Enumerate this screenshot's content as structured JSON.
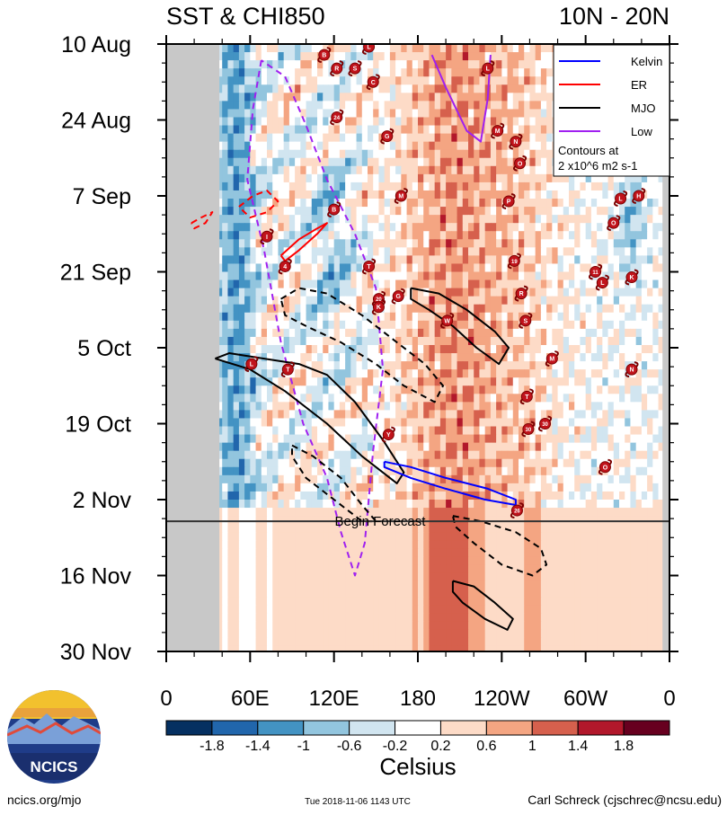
{
  "chart_data": {
    "type": "heatmap",
    "title_left": "SST & CHI850",
    "title_right": "10N - 20N",
    "x_ticks": [
      "0",
      "60E",
      "120E",
      "180",
      "120W",
      "60W",
      "0"
    ],
    "x_tick_lon": [
      0,
      60,
      120,
      180,
      240,
      300,
      360
    ],
    "y_ticks": [
      "10 Aug",
      "24 Aug",
      "7 Sep",
      "21 Sep",
      "5 Oct",
      "19 Oct",
      "2 Nov",
      "16 Nov",
      "30 Nov"
    ],
    "y_range_days": [
      0,
      112
    ],
    "forecast_day": 86,
    "forecast_label": "Begin Forecast",
    "land_lon_ranges": [
      [
        0,
        38
      ],
      [
        355,
        360
      ]
    ],
    "legend": {
      "entries": [
        {
          "name": "Kelvin",
          "color": "#0000ff"
        },
        {
          "name": "ER",
          "color": "#ff0000"
        },
        {
          "name": "MJO",
          "color": "#000000"
        },
        {
          "name": "Low",
          "color": "#a020f0"
        }
      ],
      "note_line1": "Contours at",
      "note_line2": "2 x10^6 m2 s-1"
    },
    "colorbar": {
      "title": "Celsius",
      "labels": [
        "-1.8",
        "-1.4",
        "-1",
        "-0.6",
        "-0.2",
        "0.2",
        "0.6",
        "1",
        "1.4",
        "1.8"
      ],
      "colors": [
        "#053061",
        "#2166ac",
        "#4393c3",
        "#92c5de",
        "#d1e5f0",
        "#ffffff",
        "#fddbc7",
        "#f4a582",
        "#d6604d",
        "#b2182b",
        "#67001f"
      ]
    },
    "contours": [
      {
        "wave": "Low",
        "style": "dashed",
        "points": [
          [
            68,
            3
          ],
          [
            62,
            12
          ],
          [
            58,
            25
          ],
          [
            70,
            38
          ],
          [
            82,
            55
          ],
          [
            98,
            70
          ],
          [
            115,
            80
          ],
          [
            125,
            90
          ],
          [
            135,
            98
          ],
          [
            142,
            92
          ],
          [
            148,
            75
          ],
          [
            155,
            60
          ],
          [
            150,
            45
          ],
          [
            135,
            35
          ],
          [
            115,
            25
          ],
          [
            100,
            15
          ],
          [
            85,
            6
          ],
          [
            68,
            3
          ]
        ]
      },
      {
        "wave": "Low",
        "style": "solid",
        "points": [
          [
            190,
            2
          ],
          [
            200,
            8
          ],
          [
            215,
            16
          ],
          [
            225,
            18
          ],
          [
            230,
            10
          ],
          [
            232,
            2
          ]
        ]
      },
      {
        "wave": "ER",
        "style": "dashed",
        "points": [
          [
            52,
            30
          ],
          [
            62,
            28
          ],
          [
            72,
            27
          ],
          [
            80,
            29
          ],
          [
            72,
            31
          ],
          [
            60,
            32
          ],
          [
            52,
            30
          ]
        ]
      },
      {
        "wave": "ER",
        "style": "dashed",
        "points": [
          [
            18,
            33
          ],
          [
            25,
            32
          ],
          [
            33,
            31
          ],
          [
            28,
            33
          ],
          [
            20,
            34
          ],
          [
            18,
            33
          ]
        ]
      },
      {
        "wave": "ER",
        "style": "solid",
        "points": [
          [
            82,
            39
          ],
          [
            95,
            36
          ],
          [
            108,
            34
          ],
          [
            115,
            33
          ],
          [
            108,
            35
          ],
          [
            95,
            38
          ],
          [
            85,
            40
          ],
          [
            82,
            39
          ]
        ]
      },
      {
        "wave": "MJO",
        "style": "solid",
        "points": [
          [
            35,
            58
          ],
          [
            60,
            60
          ],
          [
            85,
            64
          ],
          [
            115,
            70
          ],
          [
            140,
            76
          ],
          [
            165,
            81
          ],
          [
            170,
            79
          ],
          [
            155,
            73
          ],
          [
            135,
            66
          ],
          [
            115,
            61
          ],
          [
            95,
            59
          ],
          [
            70,
            58
          ],
          [
            45,
            57
          ],
          [
            35,
            58
          ]
        ]
      },
      {
        "wave": "MJO",
        "style": "solid",
        "points": [
          [
            175,
            45
          ],
          [
            195,
            46
          ],
          [
            215,
            49
          ],
          [
            235,
            53
          ],
          [
            245,
            56
          ],
          [
            238,
            59
          ],
          [
            222,
            56
          ],
          [
            205,
            52
          ],
          [
            188,
            49
          ],
          [
            175,
            47
          ],
          [
            175,
            45
          ]
        ]
      },
      {
        "wave": "MJO",
        "style": "dashed",
        "points": [
          [
            82,
            47
          ],
          [
            95,
            45
          ],
          [
            115,
            46
          ],
          [
            140,
            50
          ],
          [
            165,
            55
          ],
          [
            185,
            59
          ],
          [
            198,
            63
          ],
          [
            192,
            66
          ],
          [
            170,
            63
          ],
          [
            150,
            59
          ],
          [
            125,
            55
          ],
          [
            100,
            52
          ],
          [
            85,
            50
          ],
          [
            82,
            47
          ]
        ]
      },
      {
        "wave": "MJO",
        "style": "dashed",
        "points": [
          [
            90,
            74
          ],
          [
            105,
            76
          ],
          [
            125,
            80
          ],
          [
            140,
            85
          ],
          [
            150,
            88
          ],
          [
            140,
            88
          ],
          [
            120,
            84
          ],
          [
            100,
            80
          ],
          [
            90,
            76
          ],
          [
            90,
            74
          ]
        ]
      },
      {
        "wave": "MJO",
        "style": "dashed",
        "points": [
          [
            205,
            87
          ],
          [
            225,
            88
          ],
          [
            250,
            90
          ],
          [
            268,
            93
          ],
          [
            272,
            96
          ],
          [
            262,
            98
          ],
          [
            240,
            96
          ],
          [
            220,
            92
          ],
          [
            207,
            89
          ],
          [
            205,
            87
          ]
        ]
      },
      {
        "wave": "MJO",
        "style": "solid",
        "points": [
          [
            205,
            99
          ],
          [
            220,
            100
          ],
          [
            235,
            103
          ],
          [
            248,
            106
          ],
          [
            244,
            108
          ],
          [
            228,
            106
          ],
          [
            212,
            103
          ],
          [
            205,
            101
          ],
          [
            205,
            99
          ]
        ]
      },
      {
        "wave": "Kelvin",
        "style": "solid",
        "points": [
          [
            156,
            77
          ],
          [
            175,
            78
          ],
          [
            200,
            80
          ],
          [
            230,
            82
          ],
          [
            250,
            84
          ],
          [
            250,
            85
          ],
          [
            228,
            84
          ],
          [
            200,
            82
          ],
          [
            175,
            80
          ],
          [
            156,
            78
          ],
          [
            156,
            77
          ]
        ]
      }
    ],
    "storm_markers": [
      {
        "label": "L",
        "lon": 145,
        "day": 0.5
      },
      {
        "label": "B",
        "lon": 113,
        "day": 2
      },
      {
        "label": "R",
        "lon": 122,
        "day": 4.5
      },
      {
        "label": "S",
        "lon": 135,
        "day": 4.5
      },
      {
        "label": "C",
        "lon": 148,
        "day": 7
      },
      {
        "label": "L",
        "lon": 230,
        "day": 4.5
      },
      {
        "label": "24",
        "lon": 122,
        "day": 13.5
      },
      {
        "label": "G",
        "lon": 158,
        "day": 17
      },
      {
        "label": "M",
        "lon": 237,
        "day": 16
      },
      {
        "label": "N",
        "lon": 250,
        "day": 18
      },
      {
        "label": "O",
        "lon": 253,
        "day": 22
      },
      {
        "label": "M",
        "lon": 168,
        "day": 28
      },
      {
        "label": "B",
        "lon": 120,
        "day": 30.5
      },
      {
        "label": "P",
        "lon": 245,
        "day": 29
      },
      {
        "label": "L",
        "lon": 325,
        "day": 28.5
      },
      {
        "label": "H",
        "lon": 338,
        "day": 28
      },
      {
        "label": "O",
        "lon": 320,
        "day": 33
      },
      {
        "label": "I",
        "lon": 72,
        "day": 35.5
      },
      {
        "label": "4",
        "lon": 85,
        "day": 41
      },
      {
        "label": "T",
        "lon": 145,
        "day": 41
      },
      {
        "label": "19",
        "lon": 249,
        "day": 40
      },
      {
        "label": "11",
        "lon": 307,
        "day": 42
      },
      {
        "label": "L",
        "lon": 312,
        "day": 44
      },
      {
        "label": "K",
        "lon": 333,
        "day": 43
      },
      {
        "label": "20",
        "lon": 152,
        "day": 47
      },
      {
        "label": "K",
        "lon": 152,
        "day": 48.5
      },
      {
        "label": "G",
        "lon": 166,
        "day": 46.5
      },
      {
        "label": "R",
        "lon": 254,
        "day": 46
      },
      {
        "label": "W",
        "lon": 201,
        "day": 51
      },
      {
        "label": "S",
        "lon": 257,
        "day": 51
      },
      {
        "label": "M",
        "lon": 276,
        "day": 58
      },
      {
        "label": "L",
        "lon": 61,
        "day": 59
      },
      {
        "label": "T",
        "lon": 87,
        "day": 60
      },
      {
        "label": "N",
        "lon": 333,
        "day": 60
      },
      {
        "label": "T",
        "lon": 258,
        "day": 65
      },
      {
        "label": "30",
        "lon": 259,
        "day": 71
      },
      {
        "label": "30",
        "lon": 271,
        "day": 70
      },
      {
        "label": "Y",
        "lon": 159,
        "day": 72
      },
      {
        "label": "O",
        "lon": 314,
        "day": 78
      },
      {
        "label": "26",
        "lon": 251,
        "day": 86
      }
    ]
  },
  "footer": {
    "left": "ncics.org/mjo",
    "center": "Tue 2018-11-06 1143 UTC",
    "right": "Carl Schreck (cjschrec@ncsu.edu)"
  },
  "logo": {
    "text": "NCICS"
  }
}
